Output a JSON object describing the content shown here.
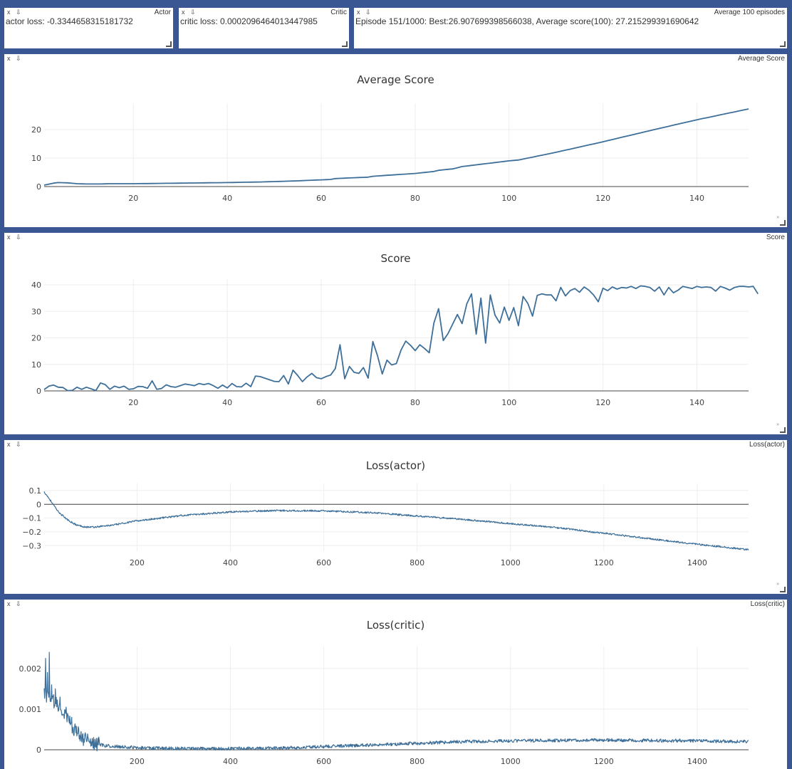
{
  "panes": {
    "actor": {
      "title": "Actor",
      "text": "actor loss: -0.3344658315181732"
    },
    "critic": {
      "title": "Critic",
      "text": "critic loss: 0.0002096464013447985"
    },
    "avg100": {
      "title": "Average 100 episodes",
      "text": "Episode 151/1000: Best:26.907699398566038, Average score(100): 27.215299391690642"
    },
    "avg_score": {
      "title": "Average Score"
    },
    "score": {
      "title": "Score"
    },
    "loss_actor": {
      "title": "Loss(actor)"
    },
    "loss_critic": {
      "title": "Loss(critic)"
    }
  },
  "controls": {
    "close": "x",
    "save": "⇩"
  },
  "colors": {
    "line": "#3d6f99",
    "grid": "#eeeeee",
    "zero": "#444444",
    "background": "#3a5793"
  },
  "chart_data": [
    {
      "id": "avg_score",
      "type": "line",
      "title": "Average Score",
      "xlim": [
        1,
        151
      ],
      "ylim": [
        0,
        27.2
      ],
      "xticks": [
        20,
        40,
        60,
        80,
        100,
        120,
        140
      ],
      "yticks": [
        0,
        10,
        20
      ],
      "anchors": [
        [
          1,
          0.5
        ],
        [
          3,
          1.2
        ],
        [
          4,
          1.4
        ],
        [
          6,
          1.3
        ],
        [
          8,
          1.0
        ],
        [
          10,
          0.9
        ],
        [
          13,
          0.9
        ],
        [
          15,
          1.0
        ],
        [
          20,
          1.0
        ],
        [
          30,
          1.2
        ],
        [
          40,
          1.4
        ],
        [
          47,
          1.6
        ],
        [
          55,
          2.0
        ],
        [
          62,
          2.5
        ],
        [
          63,
          2.8
        ],
        [
          70,
          3.3
        ],
        [
          71,
          3.6
        ],
        [
          80,
          4.6
        ],
        [
          84,
          5.3
        ],
        [
          85,
          5.7
        ],
        [
          88,
          6.2
        ],
        [
          90,
          7.0
        ],
        [
          93,
          7.6
        ],
        [
          100,
          9.0
        ],
        [
          102,
          9.3
        ],
        [
          110,
          12.0
        ],
        [
          120,
          15.7
        ],
        [
          130,
          19.6
        ],
        [
          140,
          23.4
        ],
        [
          151,
          27.2
        ]
      ],
      "noise": 0
    },
    {
      "id": "score",
      "type": "line",
      "title": "Score",
      "xlim": [
        1,
        151
      ],
      "ylim": [
        0,
        40
      ],
      "xticks": [
        20,
        40,
        60,
        80,
        100,
        120,
        140
      ],
      "yticks": [
        0,
        10,
        20,
        30,
        40
      ],
      "values": [
        0.5,
        1.8,
        2.2,
        1.4,
        1.3,
        0.1,
        0.2,
        1.4,
        0.6,
        1.4,
        0.8,
        0.1,
        3.0,
        2.4,
        0.6,
        1.8,
        1.2,
        1.8,
        0.6,
        0.8,
        1.7,
        1.6,
        1.0,
        3.8,
        0.6,
        0.9,
        2.3,
        1.6,
        1.4,
        2.0,
        2.6,
        2.3,
        2.0,
        2.8,
        2.4,
        2.8,
        2.0,
        1.0,
        2.2,
        1.1,
        2.8,
        1.6,
        1.5,
        2.9,
        1.6,
        5.6,
        5.4,
        4.8,
        4.2,
        3.6,
        3.5,
        5.8,
        2.6,
        7.8,
        5.8,
        3.5,
        5.3,
        6.6,
        5.0,
        4.6,
        5.4,
        6.0,
        8.4,
        17.4,
        4.6,
        9.2,
        7.0,
        6.6,
        8.8,
        4.8,
        18.6,
        13.2,
        6.4,
        11.6,
        9.8,
        10.3,
        15.4,
        18.8,
        17.2,
        15.2,
        17.4,
        16.0,
        14.4,
        25.6,
        31.0,
        19.0,
        21.6,
        25.2,
        28.8,
        25.4,
        32.8,
        36.6,
        21.4,
        35.0,
        18.0,
        36.2,
        28.6,
        25.6,
        31.6,
        26.6,
        31.4,
        24.6,
        35.6,
        33.0,
        28.2,
        36.0,
        36.6,
        36.2,
        36.2,
        34.0,
        39.0,
        35.8,
        37.8,
        38.6,
        37.2,
        39.2,
        38.0,
        36.2,
        33.6,
        38.7,
        37.8,
        39.2,
        38.4,
        39.0,
        38.8,
        39.4,
        38.6,
        39.6,
        39.4,
        39.0,
        37.6,
        39.2,
        36.2,
        39.0,
        37.0,
        38.0,
        39.4,
        39.0,
        38.6,
        39.4,
        39.0,
        39.2,
        39.0,
        37.6,
        39.4,
        38.8,
        38.0,
        39.0,
        39.4,
        39.4,
        39.2,
        39.4,
        36.6
      ]
    },
    {
      "id": "loss_actor",
      "type": "line",
      "title": "Loss(actor)",
      "xlim": [
        1,
        1510
      ],
      "ylim": [
        -0.34,
        0.11
      ],
      "xticks": [
        200,
        400,
        600,
        800,
        1000,
        1200,
        1400
      ],
      "yticks": [
        0.1,
        0,
        -0.1,
        -0.2,
        -0.3
      ],
      "ytick_labels": [
        "0.1",
        "0",
        "−0.1",
        "−0.2",
        "−0.3"
      ],
      "zero_line": true,
      "anchors": [
        [
          1,
          0.09
        ],
        [
          10,
          0.05
        ],
        [
          20,
          0.0
        ],
        [
          30,
          -0.05
        ],
        [
          50,
          -0.11
        ],
        [
          70,
          -0.15
        ],
        [
          90,
          -0.165
        ],
        [
          110,
          -0.165
        ],
        [
          150,
          -0.15
        ],
        [
          200,
          -0.12
        ],
        [
          300,
          -0.08
        ],
        [
          400,
          -0.055
        ],
        [
          500,
          -0.045
        ],
        [
          600,
          -0.048
        ],
        [
          700,
          -0.06
        ],
        [
          800,
          -0.085
        ],
        [
          900,
          -0.11
        ],
        [
          1000,
          -0.14
        ],
        [
          1100,
          -0.17
        ],
        [
          1200,
          -0.21
        ],
        [
          1300,
          -0.25
        ],
        [
          1400,
          -0.29
        ],
        [
          1510,
          -0.33
        ]
      ],
      "noise": 0.006
    },
    {
      "id": "loss_critic",
      "type": "line",
      "title": "Loss(critic)",
      "xlim": [
        1,
        1510
      ],
      "ylim": [
        0,
        0.0024
      ],
      "xticks": [
        200,
        400,
        600,
        800,
        1000,
        1200,
        1400
      ],
      "yticks": [
        0,
        0.001,
        0.002
      ],
      "ytick_labels": [
        "0",
        "0.001",
        "0.002"
      ],
      "anchors": [
        [
          1,
          0.0014
        ],
        [
          10,
          0.0013
        ],
        [
          20,
          0.0012
        ],
        [
          40,
          0.00095
        ],
        [
          60,
          0.0006
        ],
        [
          80,
          0.0003
        ],
        [
          100,
          0.00018
        ],
        [
          130,
          0.0001
        ],
        [
          200,
          5e-05
        ],
        [
          300,
          3e-05
        ],
        [
          400,
          3e-05
        ],
        [
          500,
          4e-05
        ],
        [
          600,
          8e-05
        ],
        [
          700,
          0.00012
        ],
        [
          800,
          0.00016
        ],
        [
          900,
          0.0002
        ],
        [
          1000,
          0.00022
        ],
        [
          1200,
          0.00024
        ],
        [
          1400,
          0.00022
        ],
        [
          1510,
          0.0002
        ]
      ],
      "noise": 4e-05,
      "spikes": [
        [
          4,
          0.00225
        ],
        [
          8,
          0.0019
        ],
        [
          12,
          0.0024
        ],
        [
          17,
          0.0016
        ],
        [
          25,
          0.0015
        ],
        [
          35,
          0.0013
        ],
        [
          48,
          0.00105
        ],
        [
          60,
          0.0008
        ]
      ]
    }
  ]
}
